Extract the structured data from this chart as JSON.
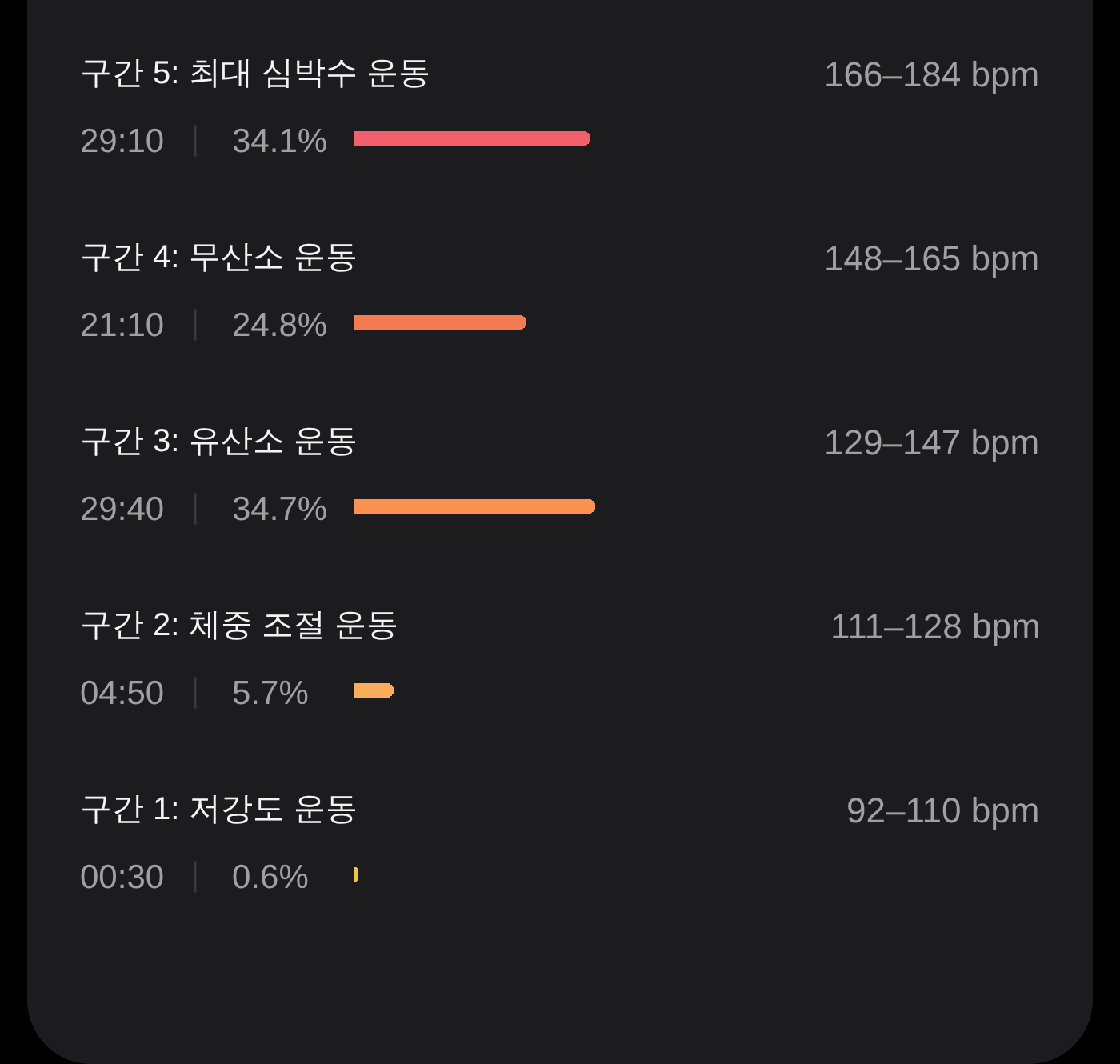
{
  "chart_data": {
    "type": "bar",
    "orientation": "horizontal",
    "categories": [
      "구간 5: 최대 심박수 운동",
      "구간 4: 무산소 운동",
      "구간 3: 유산소 운동",
      "구간 2: 체중 조절 운동",
      "구간 1: 저강도 운동"
    ],
    "y2_categories": [
      "166–184 bpm",
      "148–165 bpm",
      "129–147 bpm",
      "111–128 bpm",
      "92–110 bpm"
    ],
    "values": [
      34.1,
      24.8,
      34.7,
      5.7,
      0.6
    ],
    "value_labels": [
      "34.1%",
      "24.8%",
      "34.7%",
      "5.7%",
      "0.6%"
    ],
    "colors": [
      "#f35f6b",
      "#f47b52",
      "#fb9250",
      "#faae5c",
      "#f2c23e"
    ],
    "annotations": [
      "29:10",
      "21:10",
      "29:40",
      "04:50",
      "00:30"
    ]
  }
}
